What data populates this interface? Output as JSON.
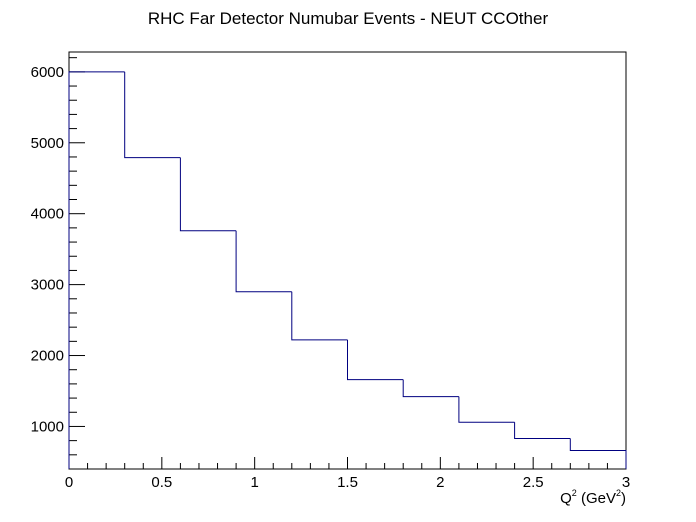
{
  "chart_data": {
    "type": "histogram",
    "title": "RHC Far Detector Numubar Events - NEUT CCOther",
    "xlabel": {
      "main": "Q",
      "sup": "2",
      "mid": " (GeV",
      "sup2": "2",
      "end": ")"
    },
    "ylabel": "",
    "xlim": [
      0,
      3
    ],
    "ylim": [
      400,
      6280
    ],
    "x_ticks": [
      0,
      0.5,
      1,
      1.5,
      2,
      2.5,
      3
    ],
    "x_tick_labels": [
      "0",
      "0.5",
      "1",
      "1.5",
      "2",
      "2.5",
      "3"
    ],
    "y_ticks": [
      1000,
      2000,
      3000,
      4000,
      5000,
      6000
    ],
    "y_tick_labels": [
      "1000",
      "2000",
      "3000",
      "4000",
      "5000",
      "6000"
    ],
    "bin_edges": [
      0,
      0.3,
      0.6,
      0.9,
      1.2,
      1.5,
      1.8,
      2.1,
      2.4,
      2.7,
      3.0
    ],
    "values": [
      6000,
      4790,
      3760,
      2900,
      2220,
      1660,
      1420,
      1060,
      830,
      660
    ],
    "line_color": "#000080",
    "grid": false,
    "legend": "none"
  }
}
